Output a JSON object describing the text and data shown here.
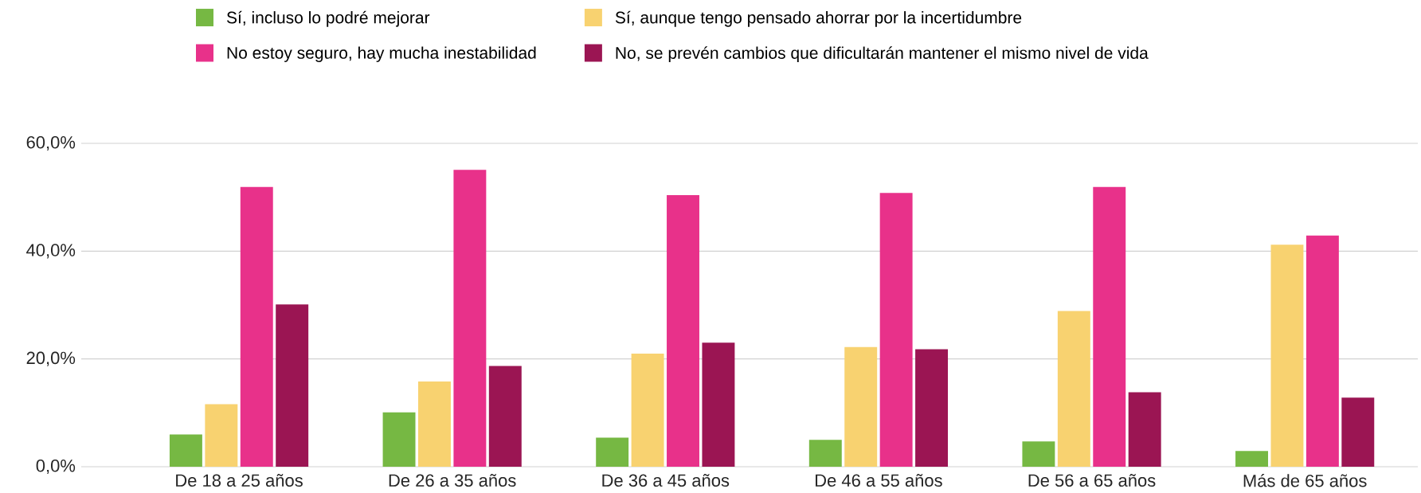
{
  "chart_data": {
    "type": "bar",
    "categories": [
      "De 18 a 25 años",
      "De 26 a 35 años",
      "De 36 a 45 años",
      "De 46 a 55 años",
      "De 56 a 65 años",
      "Más de 65 años"
    ],
    "series": [
      {
        "name": "Sí, incluso lo podré mejorar",
        "color": "#76b843",
        "values": [
          6.0,
          10.1,
          5.4,
          5.0,
          4.7,
          2.9
        ]
      },
      {
        "name": "Sí, aunque tengo pensado ahorrar por la incertidumbre",
        "color": "#f8d270",
        "values": [
          11.6,
          15.8,
          21.0,
          22.2,
          28.9,
          41.2
        ]
      },
      {
        "name": "No estoy seguro, hay mucha inestabilidad",
        "color": "#e8318a",
        "values": [
          51.9,
          55.1,
          50.4,
          50.8,
          51.9,
          42.9
        ]
      },
      {
        "name": "No, se prevén cambios que dificultarán mantener el mismo nivel de vida",
        "color": "#9b1553",
        "values": [
          30.1,
          18.7,
          23.0,
          21.8,
          13.8,
          12.8
        ]
      }
    ],
    "ylim": [
      0,
      60
    ],
    "yticks": [
      {
        "value": 0,
        "label": "0,0%"
      },
      {
        "value": 20,
        "label": "20,0%"
      },
      {
        "value": 40,
        "label": "40,0%"
      },
      {
        "value": 60,
        "label": "60,0%"
      }
    ],
    "grid": "y",
    "legend": "top"
  }
}
